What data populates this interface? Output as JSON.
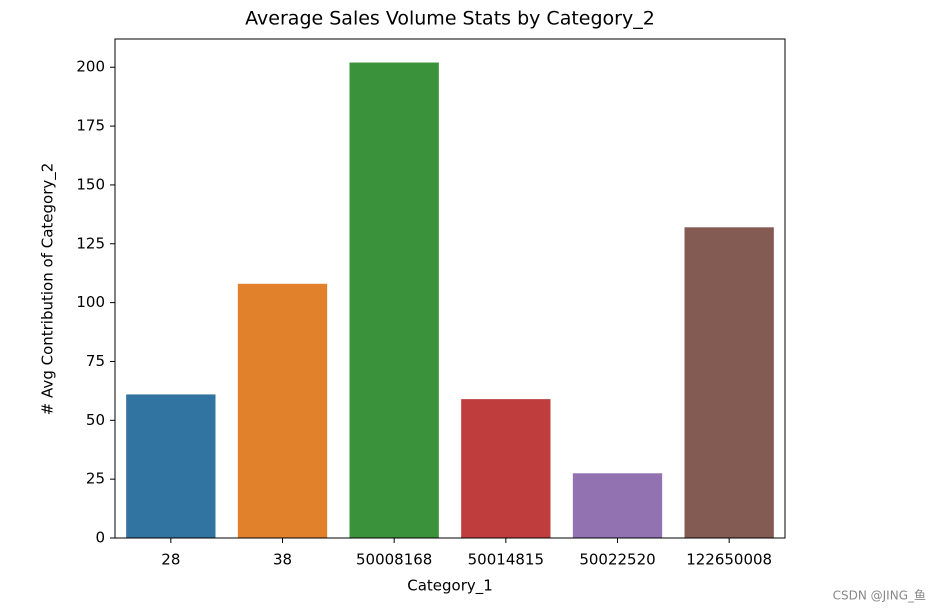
{
  "chart_data": {
    "type": "bar",
    "title": "Average Sales Volume Stats by Category_2",
    "x_label": "Category_1",
    "y_label": "# Avg Contribution of Category_2",
    "categories": [
      "28",
      "38",
      "50008168",
      "50014815",
      "50022520",
      "122650008"
    ],
    "values": [
      61,
      108,
      202,
      59,
      27.5,
      132
    ],
    "colors": [
      "#3274a1",
      "#e1812c",
      "#3a923a",
      "#c03d3e",
      "#9372b2",
      "#845b53"
    ],
    "ylim": [
      0,
      212
    ],
    "yticks": [
      0,
      25,
      50,
      75,
      100,
      125,
      150,
      175,
      200
    ],
    "grid": false
  },
  "watermark": "CSDN @JING_鱼"
}
